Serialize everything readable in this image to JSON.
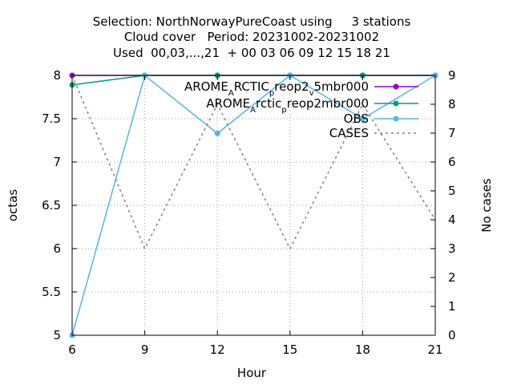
{
  "title_lines": [
    "Selection: NorthNorwayPureCoast using     3 stations",
    "Cloud cover   Period: 20231002-20231002",
    "Used  00,03,...,21  + 00 03 06 09 12 15 18 21"
  ],
  "chart_data": {
    "type": "line",
    "xlabel": "Hour",
    "ylabel": "octas",
    "y2label": "No cases",
    "x": [
      6,
      9,
      12,
      15,
      18,
      21
    ],
    "xlim": [
      6,
      21
    ],
    "ylim": [
      5,
      8
    ],
    "y2lim": [
      0,
      9
    ],
    "xticks": [
      6,
      9,
      12,
      15,
      18,
      21
    ],
    "yticks": [
      5,
      5.5,
      6,
      6.5,
      7,
      7.5,
      8
    ],
    "y2ticks": [
      0,
      1,
      2,
      3,
      4,
      5,
      6,
      7,
      8,
      9
    ],
    "grid": true,
    "legend_position": "top-right",
    "series": [
      {
        "name": "AROME_ARCTIC_preop2_v5mbr000",
        "legend_parts": [
          {
            "t": "AROME",
            "sub": false
          },
          {
            "t": "A",
            "sub": true
          },
          {
            "t": "RCTIC",
            "sub": false
          },
          {
            "t": "p",
            "sub": true
          },
          {
            "t": "reop2",
            "sub": false
          },
          {
            "t": "v",
            "sub": true
          },
          {
            "t": "5mbr000",
            "sub": false
          }
        ],
        "axis": "y",
        "color": "#9400d3",
        "dash": false,
        "marker": true,
        "values": [
          8,
          8,
          8,
          8,
          8,
          8
        ]
      },
      {
        "name": "AROME_Arctic_preop2mbr000",
        "legend_parts": [
          {
            "t": "AROME",
            "sub": false
          },
          {
            "t": "A",
            "sub": true
          },
          {
            "t": "rctic",
            "sub": false
          },
          {
            "t": "p",
            "sub": true
          },
          {
            "t": "reop2mbr000",
            "sub": false
          }
        ],
        "axis": "y",
        "color": "#009e73",
        "dash": false,
        "marker": true,
        "values": [
          7.89,
          8,
          8,
          8,
          8,
          8
        ]
      },
      {
        "name": "OBS",
        "legend_parts": [
          {
            "t": "OBS",
            "sub": false
          }
        ],
        "axis": "y",
        "color": "#56b4e9",
        "dash": false,
        "marker": true,
        "values": [
          5,
          8,
          7.33,
          8,
          7.5,
          8
        ]
      },
      {
        "name": "CASES",
        "legend_parts": [
          {
            "t": "CASES",
            "sub": false
          }
        ],
        "axis": "y2",
        "color": "#808080",
        "dash": true,
        "marker": false,
        "values": [
          9,
          3,
          8,
          3,
          8,
          4
        ]
      }
    ]
  }
}
